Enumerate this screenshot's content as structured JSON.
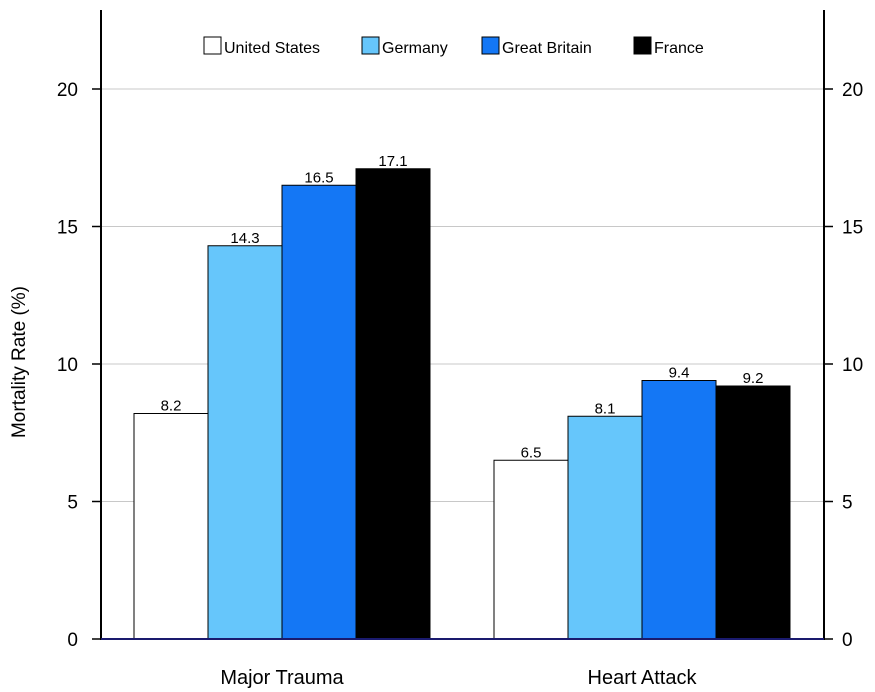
{
  "chart_data": {
    "type": "bar",
    "title": "",
    "xlabel": "",
    "ylabel": "Mortality Rate (%)",
    "categories": [
      "Major Trauma",
      "Heart Attack"
    ],
    "series": [
      {
        "name": "United States",
        "color": "#ffffff",
        "values": [
          8.2,
          6.5
        ]
      },
      {
        "name": "Germany",
        "color": "#66c6fb",
        "values": [
          14.3,
          8.1
        ]
      },
      {
        "name": "Great Britain",
        "color": "#1477f5",
        "values": [
          16.5,
          9.4
        ]
      },
      {
        "name": "France",
        "color": "#000000",
        "values": [
          17.1,
          9.2
        ]
      }
    ],
    "value_labels": [
      [
        "8.2",
        "6.5"
      ],
      [
        "14.3",
        "8.1"
      ],
      [
        "16.5",
        "9.4"
      ],
      [
        "17.1",
        "9.2"
      ]
    ],
    "ylim": [
      0,
      20
    ],
    "yticks": [
      "0",
      "5",
      "10",
      "15",
      "20"
    ],
    "grid": true,
    "secondary_y_axis": true,
    "legend_position": "top"
  }
}
